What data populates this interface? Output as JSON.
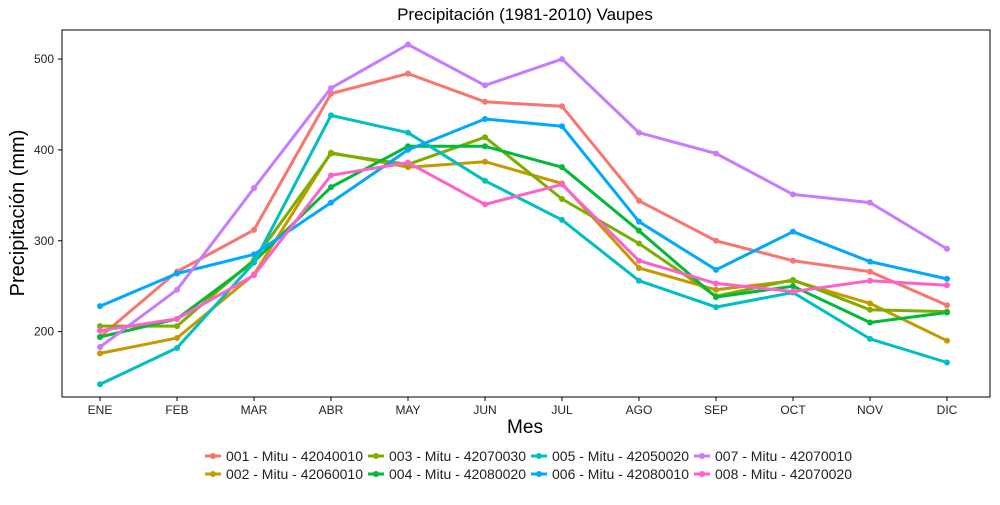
{
  "chart_data": {
    "type": "line",
    "title": "Precipitación (1981-2010)  Vaupes",
    "xlabel": "Mes",
    "ylabel": "Precipitación (mm)",
    "categories": [
      "ENE",
      "FEB",
      "MAR",
      "ABR",
      "MAY",
      "JUN",
      "JUL",
      "AGO",
      "SEP",
      "OCT",
      "NOV",
      "DIC"
    ],
    "ylim": [
      128,
      532
    ],
    "yticks": [
      200,
      300,
      400,
      500
    ],
    "grid": false,
    "legend_position": "bottom",
    "series": [
      {
        "name": "001 - Mitu - 42040010",
        "color": "#f8766d",
        "values": [
          194,
          266,
          312,
          462,
          484,
          453,
          448,
          344,
          300,
          278,
          266,
          229
        ]
      },
      {
        "name": "002 - Mitu - 42060010",
        "color": "#c49a00",
        "values": [
          176,
          193,
          263,
          397,
          381,
          387,
          363,
          270,
          246,
          256,
          231,
          190
        ]
      },
      {
        "name": "003 - Mitu - 42070030",
        "color": "#7cae00",
        "values": [
          206,
          206,
          279,
          396,
          384,
          414,
          346,
          297,
          239,
          257,
          224,
          222
        ]
      },
      {
        "name": "004 - Mitu - 42080020",
        "color": "#00ba38",
        "values": [
          194,
          214,
          277,
          359,
          404,
          404,
          381,
          311,
          238,
          250,
          210,
          221
        ]
      },
      {
        "name": "005 - Mitu - 42050020",
        "color": "#00bfc4",
        "values": [
          142,
          182,
          276,
          438,
          419,
          366,
          323,
          256,
          227,
          243,
          192,
          166
        ]
      },
      {
        "name": "006 - Mitu - 42080010",
        "color": "#00a9ff",
        "values": [
          228,
          264,
          285,
          342,
          400,
          434,
          426,
          321,
          268,
          310,
          277,
          258
        ]
      },
      {
        "name": "007 - Mitu - 42070010",
        "color": "#c77cff",
        "values": [
          183,
          246,
          358,
          468,
          516,
          471,
          500,
          419,
          396,
          351,
          342,
          291
        ]
      },
      {
        "name": "008 - Mitu - 42070020",
        "color": "#ff61cc",
        "values": [
          201,
          214,
          262,
          372,
          386,
          340,
          362,
          278,
          253,
          244,
          256,
          251
        ]
      }
    ]
  }
}
